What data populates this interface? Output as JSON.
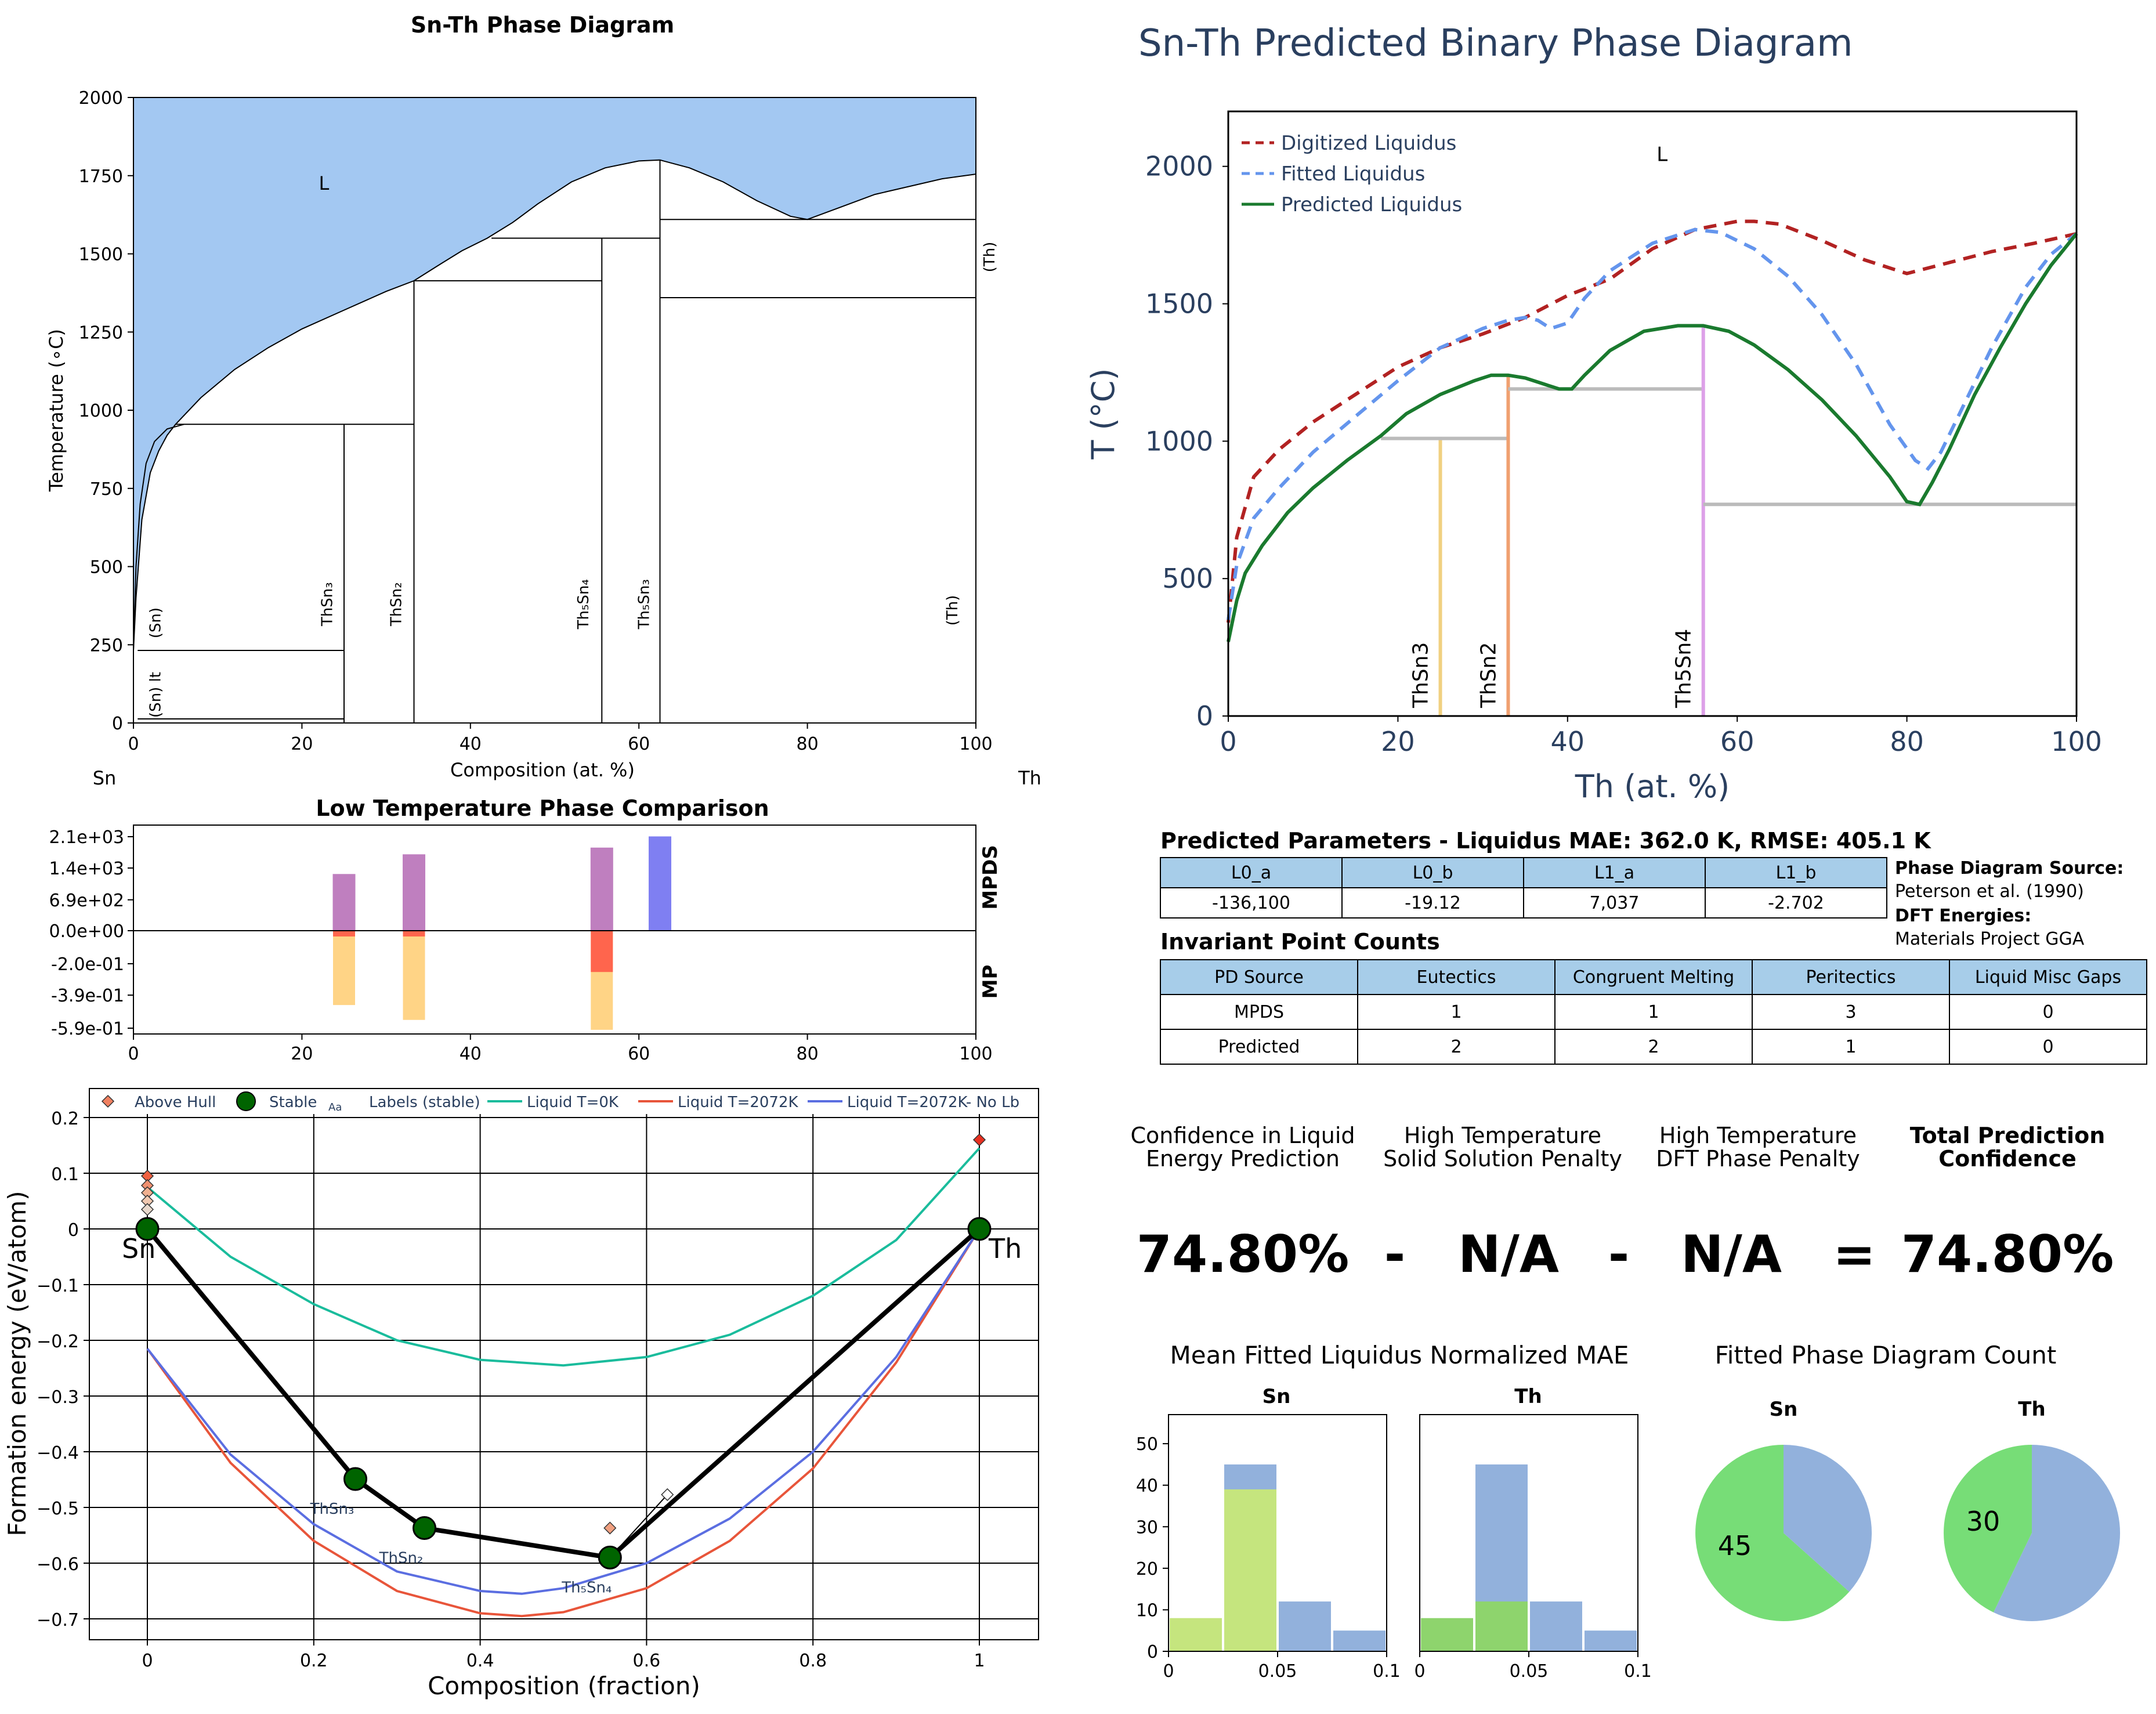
{
  "chart_data": [
    {
      "id": "pd",
      "type": "line",
      "title": "Sn-Th Phase Diagram",
      "xlabel": "Composition (at. %)",
      "ylabel": "Temperature (∘C)",
      "xlim": [
        0,
        100
      ],
      "ylim": [
        0,
        2000
      ],
      "xticks": [
        "0",
        "20",
        "40",
        "60",
        "80",
        "100"
      ],
      "yticks": [
        "0",
        "250",
        "500",
        "750",
        "1000",
        "1250",
        "1500",
        "1750",
        "2000"
      ],
      "left_element": "Sn",
      "right_element": "Th",
      "liquid_label": "L",
      "liquidus": {
        "x": [
          0,
          0.3,
          1,
          2,
          3,
          4,
          5,
          8,
          12,
          16,
          20,
          25,
          30,
          33.3,
          36,
          39,
          42,
          45,
          48,
          52,
          56,
          60,
          62.5,
          66,
          70,
          74,
          78,
          80,
          84,
          88,
          92,
          96,
          100
        ],
        "y": [
          232,
          400,
          650,
          800,
          870,
          920,
          955,
          1040,
          1130,
          1200,
          1260,
          1320,
          1380,
          1414,
          1460,
          1510,
          1550,
          1600,
          1660,
          1730,
          1775,
          1797,
          1800,
          1775,
          1730,
          1670,
          1620,
          1610,
          1650,
          1690,
          1715,
          1740,
          1755
        ]
      },
      "solvus": {
        "x": [
          0,
          0.3,
          0.8,
          1.5,
          2.5,
          4,
          6
        ],
        "y": [
          232,
          500,
          700,
          830,
          900,
          940,
          955
        ]
      },
      "phase_lines": [
        {
          "x": 25,
          "y0": 0,
          "y1": 955
        },
        {
          "x": 33.3,
          "y0": 0,
          "y1": 1414
        },
        {
          "x": 55.6,
          "y0": 0,
          "y1": 1550
        },
        {
          "x": 62.5,
          "y0": 0,
          "y1": 1800
        }
      ],
      "horizontals": [
        {
          "x0": 0.5,
          "x1": 25,
          "y": 232
        },
        {
          "x0": 0.5,
          "x1": 25,
          "y": 13
        },
        {
          "x0": 5,
          "x1": 33.3,
          "y": 955
        },
        {
          "x0": 33.3,
          "x1": 55.6,
          "y": 1414
        },
        {
          "x0": 42.5,
          "x1": 62.5,
          "y": 1550
        },
        {
          "x0": 62.5,
          "x1": 100,
          "y": 1610
        },
        {
          "x0": 62.5,
          "x1": 100,
          "y": 1360
        }
      ],
      "phase_labels": [
        {
          "text": "(Sn)",
          "x": 3.2,
          "y": 320
        },
        {
          "text": "(Sn) lt",
          "x": 3.2,
          "y": 90
        },
        {
          "text": "ThSn₃",
          "x": 23.6,
          "y": 380
        },
        {
          "text": "ThSn₂",
          "x": 31.8,
          "y": 380
        },
        {
          "text": "Th₅Sn₄",
          "x": 54.0,
          "y": 380
        },
        {
          "text": "Th₅Sn₃",
          "x": 61.2,
          "y": 380
        },
        {
          "text": "(Th)",
          "x": 97.8,
          "y": 360
        },
        {
          "text": "(Th)",
          "x": 102.2,
          "y": 1490
        }
      ]
    },
    {
      "id": "pred",
      "type": "line",
      "title": "Sn-Th Predicted Binary Phase Diagram",
      "xlabel": "Th (at. %)",
      "ylabel": "T (°C)",
      "xlim": [
        0,
        100
      ],
      "ylim": [
        0,
        2200
      ],
      "xticks": [
        "0",
        "20",
        "40",
        "60",
        "80",
        "100"
      ],
      "yticks": [
        "0",
        "500",
        "1000",
        "1500",
        "2000"
      ],
      "liquid_label": "L",
      "series": [
        {
          "name": "Digitized Liquidus",
          "color": "#b22222",
          "dash": true,
          "x": [
            0,
            1,
            3,
            6,
            10,
            15,
            20,
            25,
            30,
            35,
            40,
            45,
            50,
            55,
            60,
            62,
            65,
            70,
            75,
            80,
            85,
            90,
            95,
            100
          ],
          "y": [
            340,
            650,
            870,
            970,
            1070,
            1170,
            1270,
            1340,
            1390,
            1450,
            1530,
            1590,
            1700,
            1770,
            1800,
            1800,
            1790,
            1730,
            1660,
            1610,
            1650,
            1690,
            1720,
            1755
          ]
        },
        {
          "name": "Fitted Liquidus",
          "color": "#6495ed",
          "dash": true,
          "x": [
            0,
            1,
            3,
            6,
            10,
            15,
            20,
            25,
            30,
            33,
            35,
            36.5,
            38,
            40,
            42,
            45,
            50,
            55,
            58,
            62,
            66,
            70,
            74,
            78,
            81,
            82.5,
            84,
            87,
            90,
            94,
            97,
            100
          ],
          "y": [
            350,
            550,
            720,
            830,
            960,
            1090,
            1220,
            1340,
            1410,
            1440,
            1450,
            1440,
            1410,
            1430,
            1520,
            1620,
            1720,
            1770,
            1760,
            1700,
            1600,
            1460,
            1280,
            1060,
            930,
            900,
            960,
            1150,
            1340,
            1560,
            1680,
            1755
          ]
        },
        {
          "name": "Predicted Liquidus",
          "color": "#1a7a2e",
          "dash": false,
          "x": [
            0,
            1,
            2,
            4,
            7,
            10,
            14,
            18,
            21,
            25,
            29,
            31,
            33,
            35,
            37,
            39,
            40.5,
            42,
            45,
            49,
            53,
            56,
            59,
            62,
            66,
            70,
            74,
            78,
            80,
            81.5,
            83,
            85,
            88,
            91,
            94,
            97,
            100
          ],
          "y": [
            270,
            420,
            520,
            620,
            740,
            830,
            930,
            1020,
            1100,
            1170,
            1220,
            1240,
            1240,
            1230,
            1210,
            1190,
            1190,
            1240,
            1330,
            1400,
            1420,
            1420,
            1400,
            1350,
            1260,
            1150,
            1020,
            870,
            780,
            770,
            850,
            970,
            1170,
            1340,
            1500,
            1640,
            1755
          ]
        }
      ],
      "compounds": [
        {
          "name": "ThSn3",
          "x": 25,
          "y": 1010,
          "color": "#f0d080",
          "tie_from": 18,
          "tie_to": 33
        },
        {
          "name": "ThSn2",
          "x": 33,
          "y": 1240,
          "color": "#f0a070",
          "tie_from": 33,
          "tie_to": 56
        },
        {
          "name": "Th5Sn4",
          "x": 56,
          "y": 1420,
          "color": "#dda0e8",
          "tie_from": 56,
          "tie_to": 100
        }
      ],
      "tie_levels": [
        1010,
        1190,
        770
      ]
    },
    {
      "id": "ltpc",
      "type": "bar",
      "title": "Low Temperature Phase Comparison",
      "xlim": [
        0,
        100
      ],
      "xticks": [
        "0",
        "20",
        "40",
        "60",
        "80",
        "100"
      ],
      "yticks": [
        "2.1e+03",
        "1.4e+03",
        "6.9e+02",
        "0.0e+00",
        "-2.0e-01",
        "-3.9e-01",
        "-5.9e-01"
      ],
      "side_labels": [
        "MPDS",
        "MP"
      ],
      "mpds_max": 2100,
      "mp_min": -0.59,
      "bars_top": [
        {
          "x": 25,
          "value": 1260,
          "color": "#bf7fbf"
        },
        {
          "x": 33.3,
          "value": 1700,
          "color": "#bf7fbf"
        },
        {
          "x": 55.6,
          "value": 1850,
          "color": "#bf7fbf"
        },
        {
          "x": 62.5,
          "value": 2100,
          "color": "#7f7ff2"
        }
      ],
      "bars_bottom": [
        {
          "x": 25,
          "value": -0.45,
          "color": "#ffd27f"
        },
        {
          "x": 25,
          "value": -0.035,
          "color": "#ff5f4a"
        },
        {
          "x": 33.3,
          "value": -0.54,
          "color": "#ffd27f"
        },
        {
          "x": 33.3,
          "value": -0.035,
          "color": "#ff5f4a"
        },
        {
          "x": 55.6,
          "value": -0.6,
          "color": "#ffd27f"
        },
        {
          "x": 55.6,
          "value": -0.25,
          "color": "#ff5f4a"
        }
      ]
    },
    {
      "id": "hull",
      "type": "scatter",
      "xlabel": "Composition (fraction)",
      "ylabel": "Formation energy (eV/atom)",
      "xlim": [
        -0.06,
        1.07
      ],
      "ylim": [
        -0.73,
        0.22
      ],
      "xticks": [
        "0",
        "0.2",
        "0.4",
        "0.6",
        "0.8",
        "1"
      ],
      "yticks": [
        "0.2",
        "0.1",
        "0",
        "−0.1",
        "−0.2",
        "−0.3",
        "−0.4",
        "−0.5",
        "−0.6",
        "−0.7"
      ],
      "legend": [
        "Above Hull",
        "Stable",
        "Aa",
        "Labels (stable)",
        "Liquid T=0K",
        "Liquid T=2072K",
        "Liquid T=2072K- No Lb"
      ],
      "end_labels": [
        "Sn",
        "Th"
      ],
      "stable": [
        {
          "x": 0,
          "y": 0
        },
        {
          "x": 0.25,
          "y": -0.449,
          "label": "ThSn₃"
        },
        {
          "x": 0.333,
          "y": -0.537,
          "label": "ThSn₂"
        },
        {
          "x": 0.556,
          "y": -0.59,
          "label": "Th₅Sn₄"
        },
        {
          "x": 1,
          "y": 0
        }
      ],
      "above_hull": [
        {
          "x": 0,
          "y": 0.095,
          "color": "#f06040"
        },
        {
          "x": 0,
          "y": 0.078,
          "color": "#f09070"
        },
        {
          "x": 0,
          "y": 0.065,
          "color": "#f0b090"
        },
        {
          "x": 0,
          "y": 0.05,
          "color": "#f0c8b0"
        },
        {
          "x": 0,
          "y": 0.035,
          "color": "#e8d8cc"
        },
        {
          "x": 0.556,
          "y": -0.537,
          "color": "#f0a080"
        },
        {
          "x": 0.625,
          "y": -0.477,
          "color": "#ffffff"
        },
        {
          "x": 1,
          "y": 0.16,
          "color": "#e83020"
        }
      ],
      "liquid_curves": [
        {
          "name": "Liquid T=0K",
          "color": "#1abc9c",
          "x": [
            0,
            0.1,
            0.2,
            0.3,
            0.4,
            0.5,
            0.6,
            0.7,
            0.8,
            0.9,
            1
          ],
          "y": [
            0.075,
            -0.05,
            -0.135,
            -0.2,
            -0.235,
            -0.245,
            -0.23,
            -0.19,
            -0.12,
            -0.02,
            0.145
          ]
        },
        {
          "name": "Liquid T=2072K",
          "color": "#e8553a",
          "x": [
            0,
            0.1,
            0.2,
            0.3,
            0.4,
            0.45,
            0.5,
            0.6,
            0.7,
            0.8,
            0.9,
            1
          ],
          "y": [
            -0.215,
            -0.42,
            -0.56,
            -0.65,
            -0.69,
            -0.695,
            -0.688,
            -0.645,
            -0.56,
            -0.43,
            -0.24,
            0.0
          ]
        },
        {
          "name": "Liquid T=2072K- No Lb",
          "color": "#5b6ee1",
          "x": [
            0,
            0.1,
            0.2,
            0.3,
            0.4,
            0.45,
            0.5,
            0.6,
            0.7,
            0.8,
            0.9,
            1
          ],
          "y": [
            -0.215,
            -0.405,
            -0.53,
            -0.615,
            -0.65,
            -0.655,
            -0.645,
            -0.6,
            -0.52,
            -0.4,
            -0.23,
            0.0
          ]
        }
      ]
    },
    {
      "id": "hist_sn",
      "type": "bar",
      "title": "Sn",
      "xlim": [
        0,
        0.1
      ],
      "ylim": [
        0,
        57
      ],
      "xticks": [
        "0",
        "0.05",
        "0.1"
      ],
      "yticks": [
        "0",
        "10",
        "20",
        "30",
        "40",
        "50"
      ],
      "bins": [
        {
          "x0": 0.0,
          "x1": 0.025,
          "blue": 0,
          "green": 8
        },
        {
          "x0": 0.025,
          "x1": 0.05,
          "blue": 45,
          "green": 39
        },
        {
          "x0": 0.05,
          "x1": 0.075,
          "blue": 12,
          "green": 0
        },
        {
          "x0": 0.075,
          "x1": 0.1,
          "blue": 5,
          "green": 0
        }
      ],
      "green_color": "#c5e57e"
    },
    {
      "id": "hist_th",
      "type": "bar",
      "title": "Th",
      "xlim": [
        0,
        0.1
      ],
      "ylim": [
        0,
        57
      ],
      "xticks": [
        "0",
        "0.05",
        "0.1"
      ],
      "bins": [
        {
          "x0": 0.0,
          "x1": 0.025,
          "blue": 0,
          "green": 8
        },
        {
          "x0": 0.025,
          "x1": 0.05,
          "blue": 45,
          "green": 12
        },
        {
          "x0": 0.05,
          "x1": 0.075,
          "blue": 12,
          "green": 0
        },
        {
          "x0": 0.075,
          "x1": 0.1,
          "blue": 5,
          "green": 0
        }
      ],
      "green_color": "#8ed46d"
    },
    {
      "id": "pie_sn",
      "type": "pie",
      "title": "Sn",
      "label": "45",
      "slices": [
        {
          "value": 45,
          "color": "#77dd77"
        },
        {
          "value": 26,
          "color": "#92b1dc"
        }
      ]
    },
    {
      "id": "pie_th",
      "type": "pie",
      "title": "Th",
      "label": "30",
      "slices": [
        {
          "value": 30,
          "color": "#77dd77"
        },
        {
          "value": 40,
          "color": "#92b1dc"
        }
      ]
    }
  ],
  "params": {
    "title": "Predicted Parameters - Liquidus MAE: 362.0 K, RMSE: 405.1 K",
    "headers": [
      "L0_a",
      "L0_b",
      "L1_a",
      "L1_b"
    ],
    "values": [
      "-136,100",
      "-19.12",
      "7,037",
      "-2.702"
    ]
  },
  "source": {
    "pd_label": "Phase Diagram Source:",
    "pd_value": "Peterson et al. (1990)",
    "dft_label": "DFT Energies:",
    "dft_value": "Materials Project GGA"
  },
  "invariants": {
    "title": "Invariant Point Counts",
    "headers": [
      "PD Source",
      "Eutectics",
      "Congruent Melting",
      "Peritectics",
      "Liquid Misc Gaps"
    ],
    "rows": [
      [
        "MPDS",
        "1",
        "1",
        "3",
        "0"
      ],
      [
        "Predicted",
        "2",
        "2",
        "1",
        "0"
      ]
    ]
  },
  "confidence": {
    "h1": "Confidence in Liquid",
    "h1b": "Energy Prediction",
    "h2": "High Temperature",
    "h2b": "Solid Solution Penalty",
    "h3": "High Temperature",
    "h3b": "DFT Phase Penalty",
    "h4": "Total Prediction",
    "h4b": "Confidence",
    "v1": "74.80%",
    "op1": "-",
    "v2": "N/A",
    "op2": "-",
    "v3": "N/A",
    "op3": "=",
    "v4": "74.80%"
  },
  "lower_titles": {
    "mae": "Mean Fitted Liquidus Normalized MAE",
    "count": "Fitted Phase Diagram Count"
  }
}
